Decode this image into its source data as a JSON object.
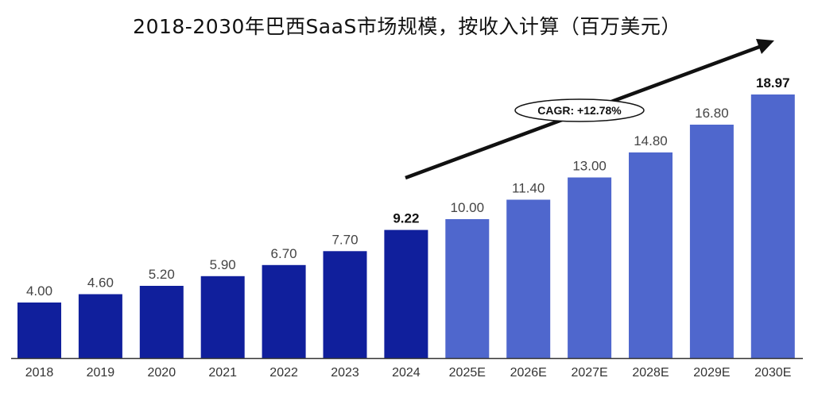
{
  "chart_data": {
    "type": "bar",
    "title": "2018-2030年巴西SaaS市场规模，按收入计算（百万美元）",
    "categories": [
      "2018",
      "2019",
      "2020",
      "2021",
      "2022",
      "2023",
      "2024",
      "2025E",
      "2026E",
      "2027E",
      "2028E",
      "2029E",
      "2030E"
    ],
    "values": [
      4.0,
      4.6,
      5.2,
      5.9,
      6.7,
      7.7,
      9.22,
      10.0,
      11.4,
      13.0,
      14.8,
      16.8,
      18.97
    ],
    "value_labels": [
      "4.00",
      "4.60",
      "5.20",
      "5.90",
      "6.70",
      "7.70",
      "9.22",
      "10.00",
      "11.40",
      "13.00",
      "14.80",
      "16.80",
      "18.97"
    ],
    "bold_labels": [
      "9.22",
      "18.97"
    ],
    "bar_colors": [
      "#101f9c",
      "#101f9c",
      "#101f9c",
      "#101f9c",
      "#101f9c",
      "#101f9c",
      "#101f9c",
      "#4f67cd",
      "#4f67cd",
      "#4f67cd",
      "#4f67cd",
      "#4f67cd",
      "#4f67cd"
    ],
    "ylim": [
      0,
      19
    ],
    "xlabel": "",
    "ylabel": "",
    "grid": false,
    "annotation": {
      "text": "CAGR: +12.78%",
      "shape": "ellipse",
      "arrow": "trend arrow from 2024 to above 2030E"
    }
  },
  "colors": {
    "historical": "#101f9c",
    "forecast": "#4f67cd",
    "axis": "#333333",
    "text": "#111111"
  }
}
